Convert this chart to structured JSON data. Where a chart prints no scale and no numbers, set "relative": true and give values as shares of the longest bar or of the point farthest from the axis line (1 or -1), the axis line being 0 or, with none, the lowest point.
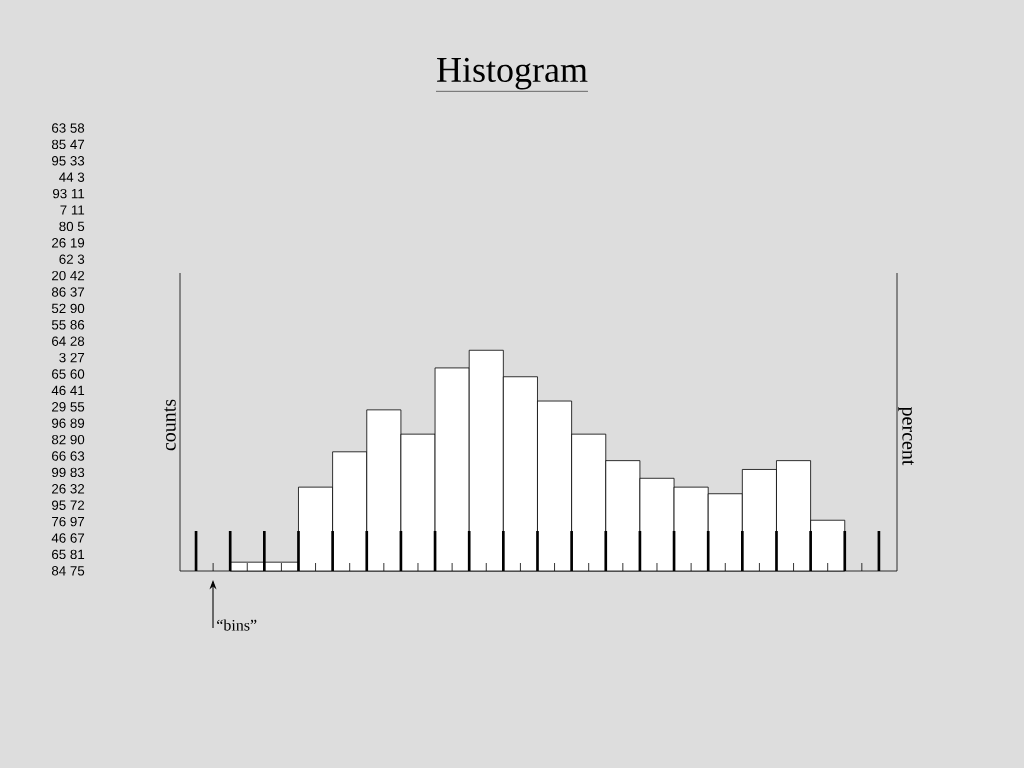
{
  "chart_data": {
    "type": "bar",
    "title": "Histogram",
    "ylabel": "counts",
    "y2label": "percent",
    "relative": true,
    "color": "#ffffff",
    "categories": [
      null,
      null,
      null,
      null,
      null,
      null,
      null,
      null,
      null,
      null,
      null,
      null,
      null,
      null,
      null,
      null,
      null,
      null
    ],
    "values": [
      0.04,
      0.04,
      0.38,
      0.54,
      0.73,
      0.62,
      0.92,
      1,
      0.88,
      0.77,
      0.62,
      0.5,
      0.42,
      0.38,
      0.35,
      0.46,
      0.5,
      0.23
    ],
    "annotations": [
      "63 58",
      "85 47",
      "95 33",
      "44 3",
      "93 11",
      "7 11",
      "80 5",
      "26 19",
      "62 3",
      "20 42",
      "86 37",
      "52 90",
      "55 86",
      "64 28",
      "3 27",
      "65 60",
      "46 41",
      "29 55",
      "96 89",
      "82 90",
      "66 63",
      "99 83",
      "26 32",
      "95 72",
      "76 97",
      "46 67",
      "65 81",
      "84 75",
      "“bins”"
    ]
  }
}
